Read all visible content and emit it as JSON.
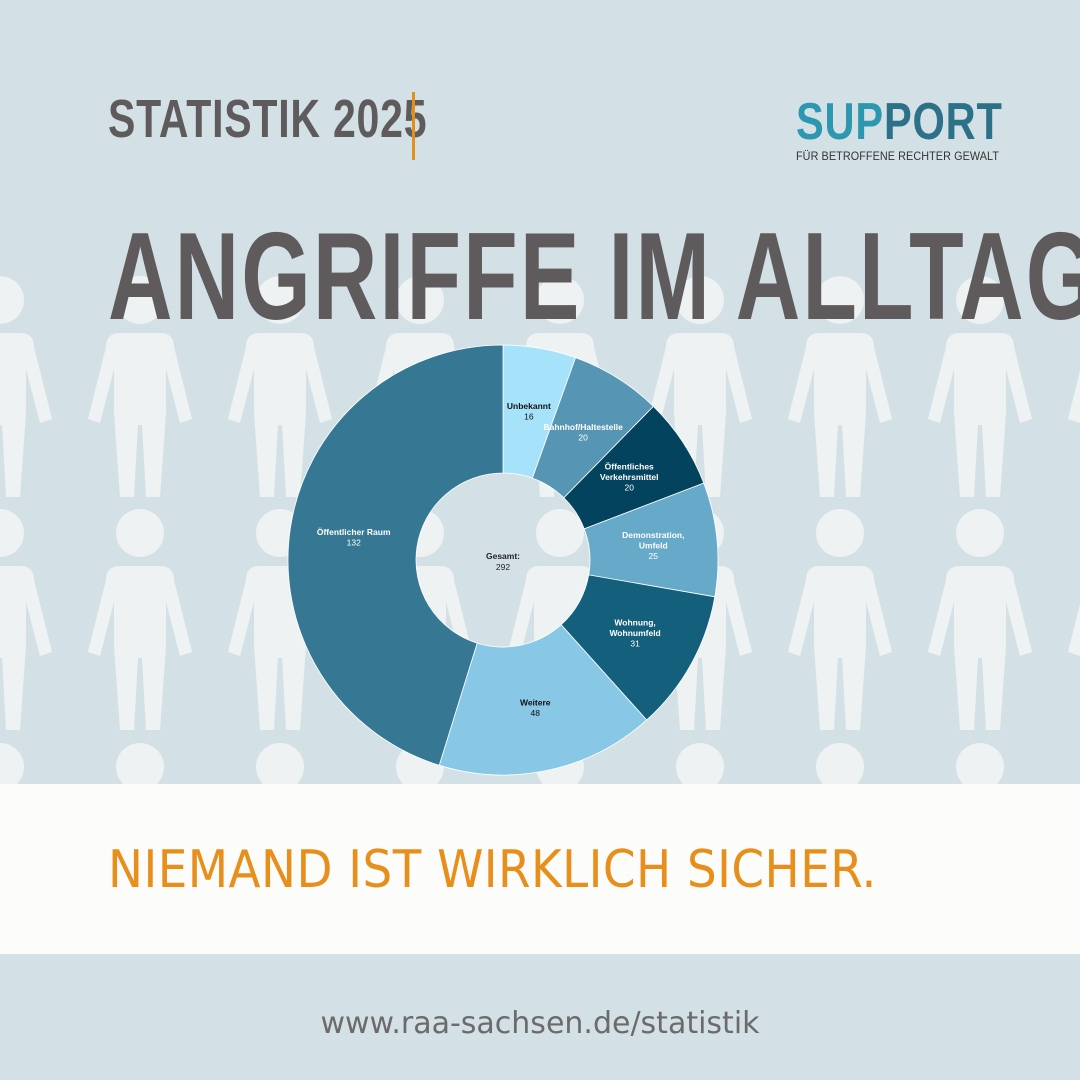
{
  "header": {
    "title": "STATISTIK 2025"
  },
  "logo": {
    "word_part1": "SUP",
    "word_part2": "PORT",
    "tagline": "FÜR BETROFFENE RECHTER GEWALT"
  },
  "headline": "ANGRIFFE IM ALLTAG",
  "slogan": "NIEMAND IST WIRKLICH SICHER.",
  "url": "www.raa-sachsen.de/statistik",
  "background": {
    "color": "#d3e1e6",
    "figure_color": "#eef2f3",
    "figure_icon": "person-silhouette-icon",
    "banner_color": "#fcfcfb"
  },
  "colors": {
    "heading": "#5f5b5c",
    "accent_orange": "#e88e1b",
    "logo_light": "#2d97b0",
    "logo_dark": "#2c7188"
  },
  "chart_data": {
    "type": "pie",
    "donut": true,
    "center_label": "Gesamt:",
    "center_value": "292",
    "slices": [
      {
        "label": [
          "Unbekannt"
        ],
        "value": 16,
        "color": "#a6e3fb",
        "text_color": "#111111"
      },
      {
        "label": [
          "Bahnhof/Haltestelle"
        ],
        "value": 20,
        "color": "#5696b4",
        "text_color": "#ffffff"
      },
      {
        "label": [
          "Öffentliches",
          "Verkehrsmittel"
        ],
        "value": 20,
        "color": "#03435e",
        "text_color": "#ffffff"
      },
      {
        "label": [
          "Demonstration,",
          "Umfeld"
        ],
        "value": 25,
        "color": "#67a9c9",
        "text_color": "#ffffff"
      },
      {
        "label": [
          "Wohnung,",
          "Wohnumfeld"
        ],
        "value": 31,
        "color": "#135f7c",
        "text_color": "#ffffff"
      },
      {
        "label": [
          "Weitere"
        ],
        "value": 48,
        "color": "#88c7e5",
        "text_color": "#111111"
      },
      {
        "label": [
          "Öffentlicher Raum"
        ],
        "value": 132,
        "color": "#367893",
        "text_color": "#ffffff"
      }
    ]
  }
}
